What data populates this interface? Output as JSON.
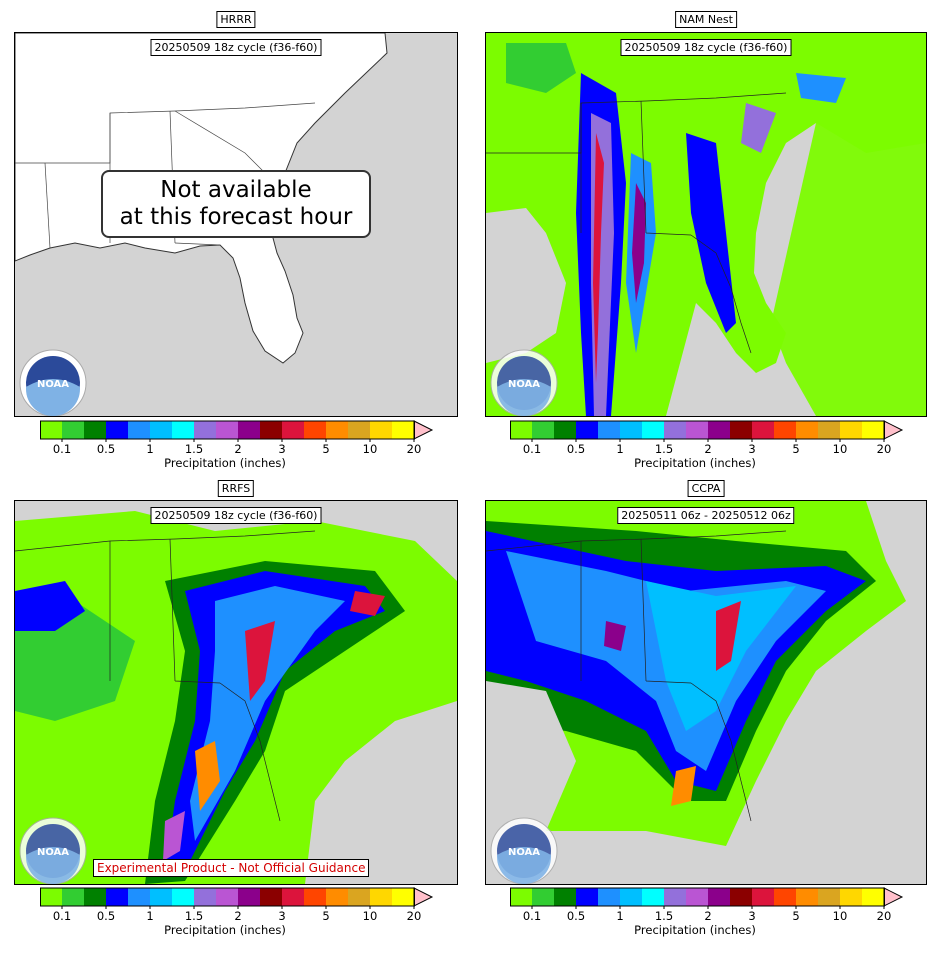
{
  "panels": [
    {
      "model": "HRRR",
      "cycle": "20250509 18z cycle (f36-f60)",
      "status": "Not available at this forecast hour",
      "status_line1": "Not available",
      "status_line2": "at this forecast hour"
    },
    {
      "model": "NAM Nest",
      "cycle": "20250509 18z cycle (f36-f60)"
    },
    {
      "model": "RRFS",
      "cycle": "20250509 18z cycle (f36-f60)",
      "note": "Experimental Product - Not Official Guidance"
    },
    {
      "model": "CCPA",
      "cycle": "20250511 06z - 20250512 06z"
    }
  ],
  "colorbar": {
    "title": "Precipitation (inches)",
    "ticks": [
      "0.1",
      "0.5",
      "1",
      "1.5",
      "2",
      "3",
      "5",
      "10",
      "20"
    ],
    "colors": [
      "#7cfc00",
      "#32cd32",
      "#008000",
      "#0000ff",
      "#1e90ff",
      "#00bfff",
      "#00ffff",
      "#9370db",
      "#ba55d3",
      "#8b008b",
      "#8b0000",
      "#dc143c",
      "#ff4500",
      "#ff8c00",
      "#daa520",
      "#ffd700",
      "#ffff00"
    ],
    "extend_color": "#ffc0cb"
  },
  "colors": {
    "land": "#ffffff",
    "water": "#d3d3d3",
    "noaa_outer": "#ffffff",
    "noaa_wave": "#7fb2e5",
    "noaa_sky": "#2b4a9a"
  },
  "icons": {
    "logo": "noaa-logo"
  }
}
